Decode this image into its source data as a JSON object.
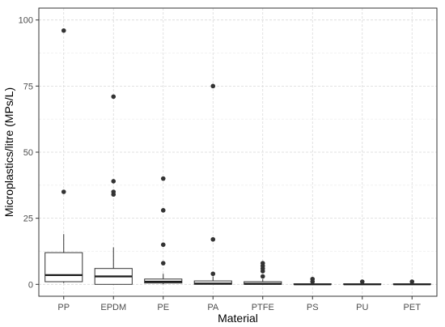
{
  "chart_data": {
    "type": "box",
    "xlabel": "Material",
    "ylabel": "Microplastics/litre (MPs/L)",
    "ylim": [
      0,
      100
    ],
    "yticks": [
      0,
      25,
      50,
      75,
      100
    ],
    "grid": true,
    "categories": [
      "PP",
      "EPDM",
      "PE",
      "PA",
      "PTFE",
      "PS",
      "PU",
      "PET"
    ],
    "boxes": [
      {
        "category": "PP",
        "whisker_low": 0.5,
        "q1": 1,
        "median": 3.5,
        "q3": 12,
        "whisker_high": 19,
        "outliers": [
          35,
          96
        ]
      },
      {
        "category": "EPDM",
        "whisker_low": 0,
        "q1": 0,
        "median": 3,
        "q3": 6,
        "whisker_high": 14,
        "outliers": [
          34,
          35,
          39,
          71
        ]
      },
      {
        "category": "PE",
        "whisker_low": 0,
        "q1": 0.5,
        "median": 1,
        "q3": 2,
        "whisker_high": 4,
        "outliers": [
          8,
          15,
          28,
          40
        ]
      },
      {
        "category": "PA",
        "whisker_low": 0,
        "q1": 0,
        "median": 0.3,
        "q3": 1.3,
        "whisker_high": 3,
        "outliers": [
          4,
          17,
          75
        ]
      },
      {
        "category": "PTFE",
        "whisker_low": 0,
        "q1": 0,
        "median": 0.2,
        "q3": 1,
        "whisker_high": 2,
        "outliers": [
          3,
          5,
          6,
          7,
          8
        ]
      },
      {
        "category": "PS",
        "whisker_low": 0,
        "q1": 0,
        "median": 0,
        "q3": 0.2,
        "whisker_high": 0.5,
        "outliers": [
          1,
          2
        ]
      },
      {
        "category": "PU",
        "whisker_low": 0,
        "q1": 0,
        "median": 0,
        "q3": 0.2,
        "whisker_high": 0.4,
        "outliers": [
          1
        ]
      },
      {
        "category": "PET",
        "whisker_low": 0,
        "q1": 0,
        "median": 0,
        "q3": 0.2,
        "whisker_high": 0.4,
        "outliers": [
          1
        ]
      }
    ]
  }
}
